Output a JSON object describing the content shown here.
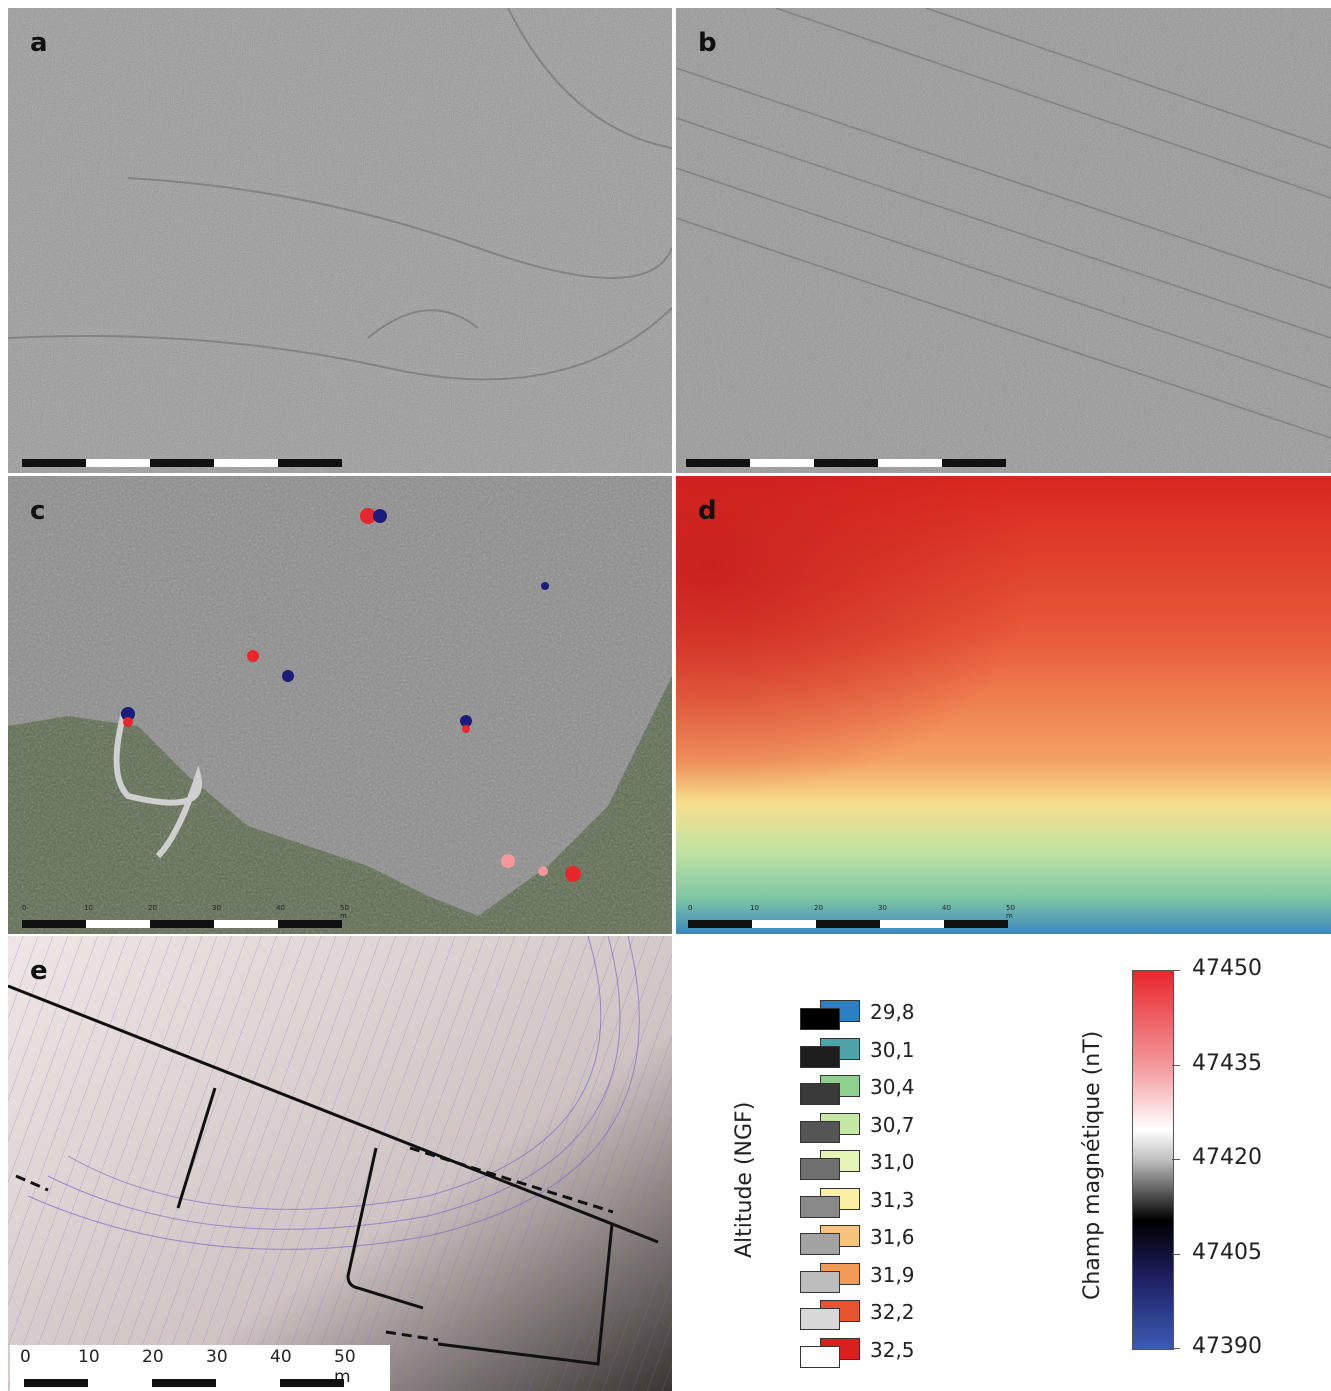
{
  "panels": [
    {
      "id": "a",
      "label": "a",
      "type": "hillshade"
    },
    {
      "id": "b",
      "label": "b",
      "type": "hillshade"
    },
    {
      "id": "c",
      "label": "c",
      "type": "magnetic-map",
      "scale_ticks": [
        "0",
        "10",
        "20",
        "30",
        "40",
        "50 m"
      ]
    },
    {
      "id": "d",
      "label": "d",
      "type": "altitude-map",
      "scale_ticks": [
        "0",
        "10",
        "20",
        "30",
        "40",
        "50 m"
      ]
    },
    {
      "id": "e",
      "label": "e",
      "type": "contour-plan",
      "scale_ticks": [
        "0",
        "10",
        "20",
        "30",
        "40",
        "50 m"
      ]
    }
  ],
  "altitude_legend": {
    "title": "Altitude (NGF)",
    "items": [
      {
        "value": "29,8",
        "color": "#2e7fc2",
        "gray": "#000000"
      },
      {
        "value": "30,1",
        "color": "#4ea3a8",
        "gray": "#1e1e1e"
      },
      {
        "value": "30,4",
        "color": "#8fd08f",
        "gray": "#3a3a3a"
      },
      {
        "value": "30,7",
        "color": "#c6e8a6",
        "gray": "#555555"
      },
      {
        "value": "31,0",
        "color": "#e6f3b7",
        "gray": "#6f6f6f"
      },
      {
        "value": "31,3",
        "color": "#fbf0a2",
        "gray": "#8a8a8a"
      },
      {
        "value": "31,6",
        "color": "#f8c37c",
        "gray": "#a3a3a3"
      },
      {
        "value": "31,9",
        "color": "#f39a54",
        "gray": "#bdbdbd"
      },
      {
        "value": "32,2",
        "color": "#e8542f",
        "gray": "#d8d8d8"
      },
      {
        "value": "32,5",
        "color": "#d9201f",
        "gray": "#ffffff"
      }
    ]
  },
  "magnetic_legend": {
    "title": "Champ magnétique (nT)",
    "ticks": [
      "47450",
      "47435",
      "47420",
      "47405",
      "47390"
    ],
    "tick_fractions": [
      0,
      0.25,
      0.5,
      0.75,
      1
    ]
  }
}
